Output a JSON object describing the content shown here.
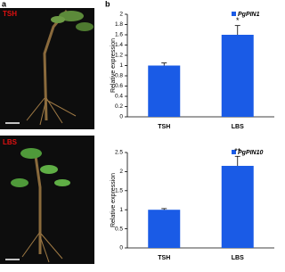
{
  "panel_labels": [
    "a",
    "b"
  ],
  "photo_labels": [
    "TSH",
    "LBS"
  ],
  "chart_data": [
    {
      "type": "bar",
      "y_label": "Relative expression",
      "categories": [
        "TSH",
        "LBS"
      ],
      "series": [
        {
          "name": "PgPIN1",
          "color": "#1a5be6",
          "values": [
            1.0,
            1.6
          ],
          "errors": [
            0.05,
            0.18
          ],
          "annotations": [
            null,
            "*"
          ]
        }
      ],
      "ylim": [
        0,
        2
      ],
      "yticks": [
        0,
        0.2,
        0.4,
        0.6,
        0.8,
        1,
        1.2,
        1.4,
        1.6,
        1.8,
        2
      ],
      "legend": "top-right"
    },
    {
      "type": "bar",
      "y_label": "Relative expression",
      "categories": [
        "TSH",
        "LBS"
      ],
      "series": [
        {
          "name": "PgPIN10",
          "color": "#1a5be6",
          "values": [
            1.0,
            2.15
          ],
          "errors": [
            0.03,
            0.25
          ],
          "annotations": [
            null,
            "**"
          ]
        }
      ],
      "ylim": [
        0,
        2.5
      ],
      "yticks": [
        0,
        0.5,
        1,
        1.5,
        2,
        2.5
      ],
      "legend": "top-right"
    }
  ]
}
